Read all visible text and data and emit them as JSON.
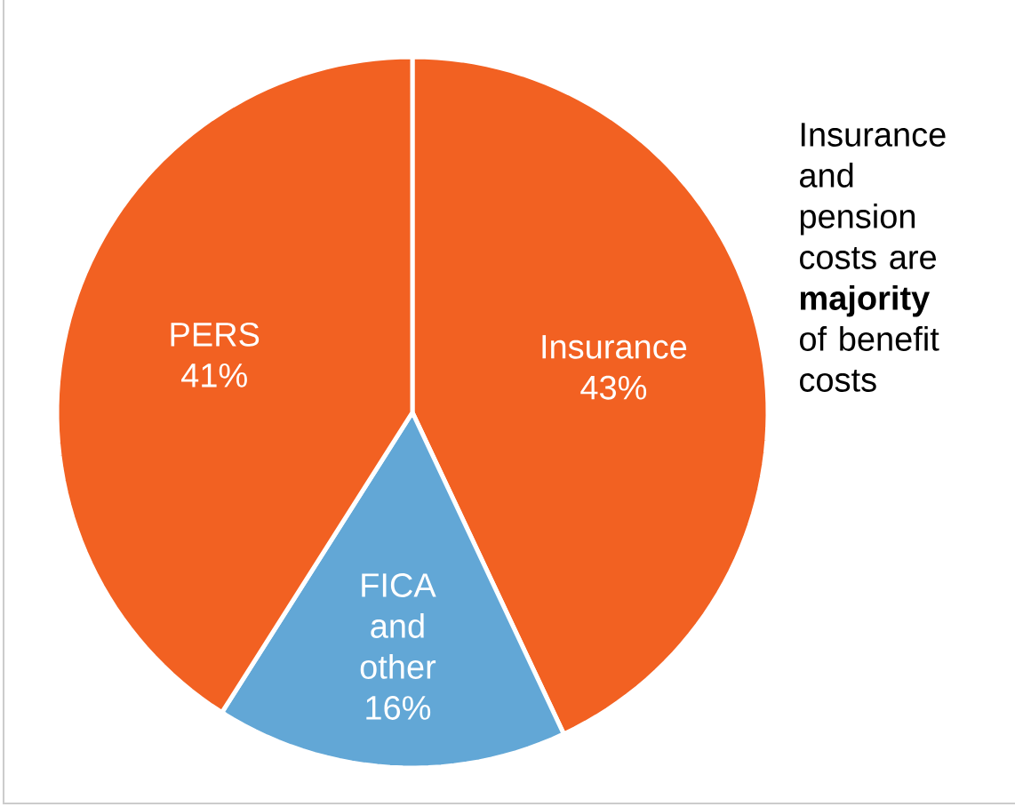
{
  "chart_data": {
    "type": "pie",
    "categories": [
      "Insurance",
      "FICA and other",
      "PERS"
    ],
    "values": [
      43,
      16,
      41
    ],
    "value_labels": [
      "43%",
      "16%",
      "41%"
    ],
    "colors": [
      "#f26122",
      "#62a7d6",
      "#f26122"
    ],
    "annotations": [
      "Insurance and pension costs are **majority** of benefit costs"
    ]
  }
}
